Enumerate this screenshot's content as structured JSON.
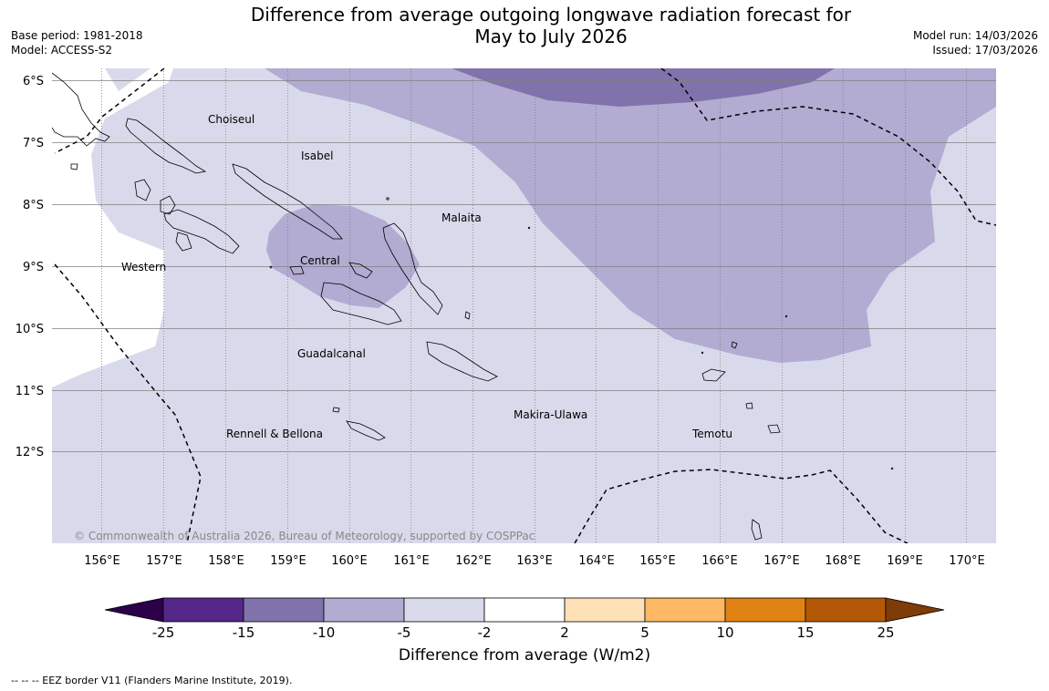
{
  "title_line1": "Difference from average outgoing longwave radiation forecast for",
  "title_line2": "May to July 2026",
  "base_period": "Base period: 1981-2018",
  "model": "Model: ACCESS-S2",
  "model_run": "Model run: 14/03/2026",
  "issued": "Issued: 17/03/2026",
  "copyright": "© Commonwealth of Australia 2026, Bureau of Meteorology, supported by COSPPac",
  "colorbar_title": "Difference from average (W/m2)",
  "footnote": "--  --  -- EEZ border V11 (Flanders Marine Institute, 2019).",
  "lat_labels": [
    "6°S",
    "7°S",
    "8°S",
    "9°S",
    "10°S",
    "11°S",
    "12°S"
  ],
  "lon_labels": [
    "156°E",
    "157°E",
    "158°E",
    "159°E",
    "160°E",
    "161°E",
    "162°E",
    "163°E",
    "164°E",
    "165°E",
    "166°E",
    "167°E",
    "168°E",
    "169°E",
    "170°E"
  ],
  "places": [
    "Choiseul",
    "Isabel",
    "Malaita",
    "Western",
    "Central",
    "Guadalcanal",
    "Makira-Ulawa",
    "Rennell & Bellona",
    "Temotu"
  ],
  "colorbar_ticks": [
    "-25",
    "-15",
    "-10",
    "-5",
    "-2",
    "2",
    "5",
    "10",
    "15",
    "25"
  ],
  "colorbar_colors": {
    "below_min": "#2d004b",
    "bin_1": "#542788",
    "bin_2": "#8073ac",
    "bin_3": "#b2abd2",
    "bin_4": "#d8daeb",
    "bin_5": "#ffffff",
    "bin_6": "#fee0b6",
    "bin_7": "#fdb863",
    "bin_8": "#e08214",
    "bin_9": "#b35806",
    "above_max": "#7f3b08"
  }
}
